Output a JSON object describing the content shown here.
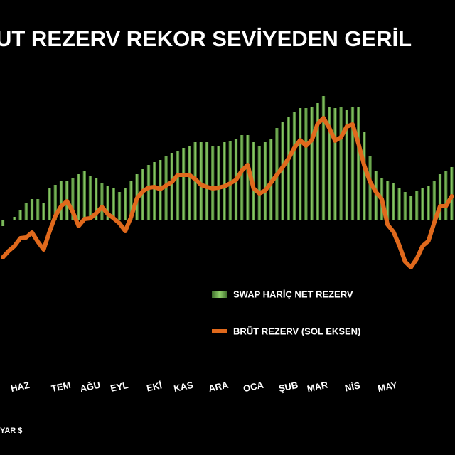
{
  "chart_data": {
    "type": "bar_line",
    "title": "UT REZERV REKOR SEVİYEDEN GERİL",
    "unit_label": "YAR $",
    "categories": [
      null,
      null,
      null,
      "HAZ",
      null,
      null,
      null,
      null,
      null,
      null,
      "TEM",
      null,
      null,
      null,
      null,
      "AĞU",
      null,
      null,
      null,
      null,
      "EYL",
      null,
      null,
      null,
      null,
      null,
      "EKİ",
      null,
      null,
      null,
      null,
      "KAS",
      null,
      null,
      null,
      null,
      null,
      "ARA",
      null,
      null,
      null,
      null,
      null,
      "OCA",
      null,
      null,
      null,
      null,
      null,
      "ŞUB",
      null,
      null,
      null,
      null,
      "MAR",
      null,
      null,
      null,
      null,
      null,
      "NİS",
      null,
      null,
      null,
      null,
      null,
      "MAY",
      null,
      null,
      null,
      null,
      null,
      null,
      null,
      null,
      null,
      null,
      null
    ],
    "series": [
      {
        "name": "SWAP HARİÇ NET REZERV",
        "type": "bar",
        "axis": "y2",
        "color": "#6aa84f",
        "values": [
          -8,
          0,
          5,
          15,
          25,
          30,
          30,
          25,
          45,
          50,
          55,
          55,
          60,
          65,
          70,
          62,
          60,
          52,
          48,
          45,
          40,
          45,
          55,
          65,
          72,
          78,
          82,
          85,
          90,
          95,
          98,
          102,
          105,
          110,
          110,
          110,
          105,
          105,
          110,
          112,
          115,
          120,
          120,
          110,
          105,
          110,
          115,
          130,
          138,
          145,
          152,
          158,
          158,
          160,
          165,
          175,
          160,
          158,
          160,
          155,
          160,
          160,
          125,
          90,
          70,
          60,
          55,
          52,
          45,
          40,
          35,
          42,
          45,
          48,
          55,
          65,
          70,
          75
        ]
      },
      {
        "name": "BRÜT REZERV (SOL EKSEN)",
        "type": "line",
        "color": "#e0691c",
        "values": [
          38,
          47,
          54,
          65,
          66,
          73,
          60,
          49,
          74,
          96,
          110,
          117,
          102,
          82,
          92,
          93,
          100,
          109,
          99,
          93,
          86,
          75,
          95,
          121,
          131,
          136,
          137,
          134,
          139,
          144,
          154,
          154,
          154,
          148,
          140,
          137,
          135,
          136,
          138,
          142,
          147,
          160,
          168,
          135,
          128,
          132,
          143,
          154,
          165,
          177,
          192,
          203,
          195,
          203,
          226,
          234,
          220,
          202,
          207,
          222,
          225,
          198,
          167,
          144,
          130,
          120,
          84,
          74,
          55,
          32,
          24,
          36,
          54,
          61,
          87,
          110,
          110,
          124
        ]
      }
    ],
    "ylim": [
      -240,
      400
    ],
    "y2lim": [
      -330,
      310
    ],
    "legend": "center-right"
  }
}
